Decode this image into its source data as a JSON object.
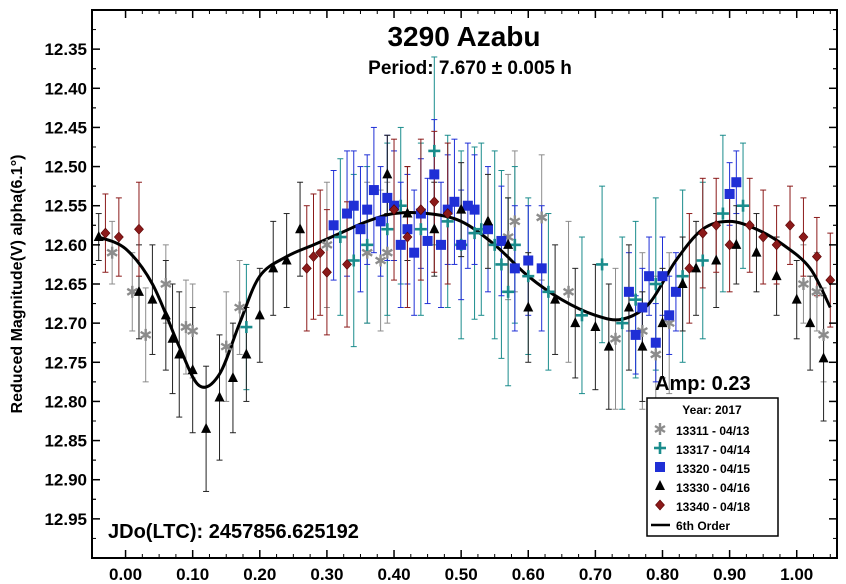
{
  "chart_data": {
    "type": "scatter",
    "title": "3290 Azabu",
    "subtitle": "Period: 7.670 ± 0.005 h",
    "ylabel": "Reduced Magnitude(V) alpha(6.1°)",
    "xlabel": "",
    "xlim": [
      -0.05,
      1.06
    ],
    "ylim": [
      12.3,
      13.0
    ],
    "y_inverted": true,
    "x_ticks": [
      "0.00",
      "0.10",
      "0.20",
      "0.30",
      "0.40",
      "0.50",
      "0.60",
      "0.70",
      "0.80",
      "0.90",
      "1.00"
    ],
    "y_ticks": [
      "12.35",
      "12.40",
      "12.45",
      "12.50",
      "12.55",
      "12.60",
      "12.65",
      "12.70",
      "12.75",
      "12.80",
      "12.85",
      "12.90",
      "12.95"
    ],
    "annotation_amp": "Amp: 0.23",
    "annotation_jd": "JDo(LTC): 2457856.625192",
    "legend": {
      "title": "Year: 2017",
      "position": "bottom-right",
      "entries": [
        {
          "label": "13311 - 04/13",
          "marker": "asterisk",
          "color": "#8c8c8c"
        },
        {
          "label": "13317 - 04/14",
          "marker": "plus",
          "color": "#1a8c8c"
        },
        {
          "label": "13320 - 04/15",
          "marker": "square",
          "color": "#1f2fd6"
        },
        {
          "label": "13330 - 04/16",
          "marker": "triangle",
          "color": "#000000"
        },
        {
          "label": "13340 - 04/18",
          "marker": "diamond",
          "color": "#8b1a1a"
        },
        {
          "label": "6th Order",
          "marker": "line",
          "color": "#000000"
        }
      ]
    },
    "fit": {
      "name": "6th Order",
      "x": [
        -0.04,
        0.0,
        0.04,
        0.08,
        0.11,
        0.14,
        0.17,
        0.2,
        0.24,
        0.28,
        0.32,
        0.36,
        0.4,
        0.45,
        0.5,
        0.55,
        0.6,
        0.65,
        0.7,
        0.74,
        0.78,
        0.82,
        0.86,
        0.9,
        0.94,
        0.98,
        1.02,
        1.05
      ],
      "y": [
        12.59,
        12.605,
        12.65,
        12.73,
        12.78,
        12.765,
        12.7,
        12.64,
        12.615,
        12.6,
        12.585,
        12.57,
        12.56,
        12.56,
        12.57,
        12.6,
        12.64,
        12.67,
        12.69,
        12.695,
        12.675,
        12.62,
        12.58,
        12.57,
        12.58,
        12.6,
        12.63,
        12.68
      ]
    },
    "series": [
      {
        "name": "13311 - 04/13",
        "marker": "asterisk",
        "color": "#8c8c8c",
        "x": [
          -0.02,
          0.01,
          0.03,
          0.06,
          0.09,
          0.1,
          0.15,
          0.17,
          0.3,
          0.36,
          0.38,
          0.39,
          0.57,
          0.58,
          0.62,
          0.66,
          0.73,
          0.77,
          0.79,
          0.81,
          1.01,
          1.03,
          1.04
        ],
        "y": [
          12.61,
          12.66,
          12.715,
          12.65,
          12.705,
          12.71,
          12.73,
          12.68,
          12.6,
          12.61,
          12.62,
          12.61,
          12.59,
          12.57,
          12.565,
          12.66,
          12.72,
          12.71,
          12.74,
          12.7,
          12.65,
          12.66,
          12.715
        ],
        "err": [
          0.04,
          0.05,
          0.06,
          0.05,
          0.06,
          0.06,
          0.07,
          0.06,
          0.08,
          0.09,
          0.09,
          0.09,
          0.08,
          0.09,
          0.08,
          0.09,
          0.09,
          0.1,
          0.1,
          0.09,
          0.05,
          0.05,
          0.06
        ]
      },
      {
        "name": "13317 - 04/14",
        "marker": "plus",
        "color": "#1a8c8c",
        "x": [
          0.18,
          0.32,
          0.34,
          0.36,
          0.39,
          0.41,
          0.44,
          0.46,
          0.48,
          0.5,
          0.52,
          0.53,
          0.55,
          0.56,
          0.57,
          0.58,
          0.6,
          0.63,
          0.68,
          0.71,
          0.74,
          0.76,
          0.79,
          0.83,
          0.86,
          0.89,
          0.92
        ],
        "y": [
          12.705,
          12.59,
          12.62,
          12.6,
          12.58,
          12.55,
          12.58,
          12.48,
          12.57,
          12.6,
          12.585,
          12.58,
          12.6,
          12.625,
          12.66,
          12.6,
          12.64,
          12.66,
          12.69,
          12.625,
          12.7,
          12.67,
          12.65,
          12.64,
          12.62,
          12.56,
          12.55
        ],
        "err": [
          0.08,
          0.1,
          0.11,
          0.1,
          0.11,
          0.1,
          0.11,
          0.12,
          0.11,
          0.12,
          0.11,
          0.11,
          0.12,
          0.12,
          0.12,
          0.1,
          0.1,
          0.1,
          0.1,
          0.1,
          0.11,
          0.1,
          0.11,
          0.11,
          0.1,
          0.1,
          0.08
        ]
      },
      {
        "name": "13320 - 04/15",
        "marker": "square",
        "color": "#1f2fd6",
        "x": [
          0.31,
          0.33,
          0.34,
          0.35,
          0.36,
          0.37,
          0.38,
          0.39,
          0.4,
          0.41,
          0.42,
          0.43,
          0.44,
          0.45,
          0.46,
          0.47,
          0.48,
          0.49,
          0.5,
          0.51,
          0.52,
          0.54,
          0.56,
          0.58,
          0.6,
          0.62,
          0.75,
          0.76,
          0.77,
          0.78,
          0.79,
          0.8,
          0.81,
          0.82,
          0.9,
          0.91
        ],
        "y": [
          12.575,
          12.56,
          12.55,
          12.58,
          12.555,
          12.53,
          12.57,
          12.54,
          12.55,
          12.6,
          12.58,
          12.61,
          12.56,
          12.595,
          12.51,
          12.6,
          12.555,
          12.545,
          12.6,
          12.55,
          12.555,
          12.58,
          12.595,
          12.63,
          12.62,
          12.63,
          12.66,
          12.715,
          12.68,
          12.64,
          12.725,
          12.64,
          12.69,
          12.66,
          12.535,
          12.52
        ],
        "err": [
          0.07,
          0.08,
          0.07,
          0.08,
          0.07,
          0.08,
          0.07,
          0.08,
          0.07,
          0.08,
          0.07,
          0.08,
          0.07,
          0.08,
          0.07,
          0.08,
          0.07,
          0.08,
          0.07,
          0.08,
          0.07,
          0.08,
          0.07,
          0.08,
          0.07,
          0.08,
          0.05,
          0.05,
          0.05,
          0.05,
          0.05,
          0.05,
          0.05,
          0.05,
          0.04,
          0.04
        ]
      },
      {
        "name": "13330 - 04/16",
        "marker": "triangle",
        "color": "#000000",
        "x": [
          -0.04,
          0.02,
          0.04,
          0.06,
          0.07,
          0.08,
          0.1,
          0.12,
          0.14,
          0.16,
          0.18,
          0.2,
          0.22,
          0.24,
          0.26,
          0.39,
          0.42,
          0.46,
          0.5,
          0.54,
          0.57,
          0.6,
          0.64,
          0.67,
          0.7,
          0.72,
          0.75,
          0.77,
          0.8,
          0.83,
          0.85,
          0.88,
          0.91,
          0.94,
          0.97,
          1.0,
          1.02,
          1.04
        ],
        "y": [
          12.59,
          12.66,
          12.67,
          12.69,
          12.72,
          12.74,
          12.76,
          12.835,
          12.795,
          12.77,
          12.74,
          12.69,
          12.63,
          12.62,
          12.58,
          12.51,
          12.56,
          12.58,
          12.555,
          12.57,
          12.6,
          12.68,
          12.67,
          12.7,
          12.705,
          12.73,
          12.68,
          12.73,
          12.7,
          12.65,
          12.63,
          12.62,
          12.6,
          12.61,
          12.64,
          12.67,
          12.7,
          12.745
        ],
        "err": [
          0.03,
          0.06,
          0.07,
          0.07,
          0.07,
          0.08,
          0.08,
          0.08,
          0.08,
          0.07,
          0.06,
          0.06,
          0.06,
          0.06,
          0.06,
          0.05,
          0.06,
          0.06,
          0.06,
          0.06,
          0.06,
          0.07,
          0.07,
          0.07,
          0.08,
          0.08,
          0.08,
          0.07,
          0.07,
          0.06,
          0.06,
          0.06,
          0.05,
          0.05,
          0.05,
          0.05,
          0.06,
          0.08
        ]
      },
      {
        "name": "13340 - 04/18",
        "marker": "diamond",
        "color": "#8b1a1a",
        "x": [
          -0.03,
          -0.01,
          0.02,
          0.27,
          0.28,
          0.29,
          0.3,
          0.33,
          0.4,
          0.42,
          0.44,
          0.46,
          0.48,
          0.84,
          0.86,
          0.88,
          0.9,
          0.93,
          0.95,
          0.97,
          0.99,
          1.01,
          1.03,
          1.05
        ],
        "y": [
          12.585,
          12.59,
          12.58,
          12.63,
          12.615,
          12.61,
          12.635,
          12.625,
          12.555,
          12.59,
          12.555,
          12.545,
          12.56,
          12.63,
          12.585,
          12.575,
          12.6,
          12.575,
          12.59,
          12.6,
          12.575,
          12.59,
          12.615,
          12.645
        ],
        "err": [
          0.05,
          0.05,
          0.06,
          0.08,
          0.08,
          0.08,
          0.08,
          0.08,
          0.09,
          0.09,
          0.09,
          0.09,
          0.09,
          0.07,
          0.07,
          0.06,
          0.06,
          0.06,
          0.06,
          0.05,
          0.05,
          0.05,
          0.05,
          0.06
        ]
      }
    ]
  }
}
